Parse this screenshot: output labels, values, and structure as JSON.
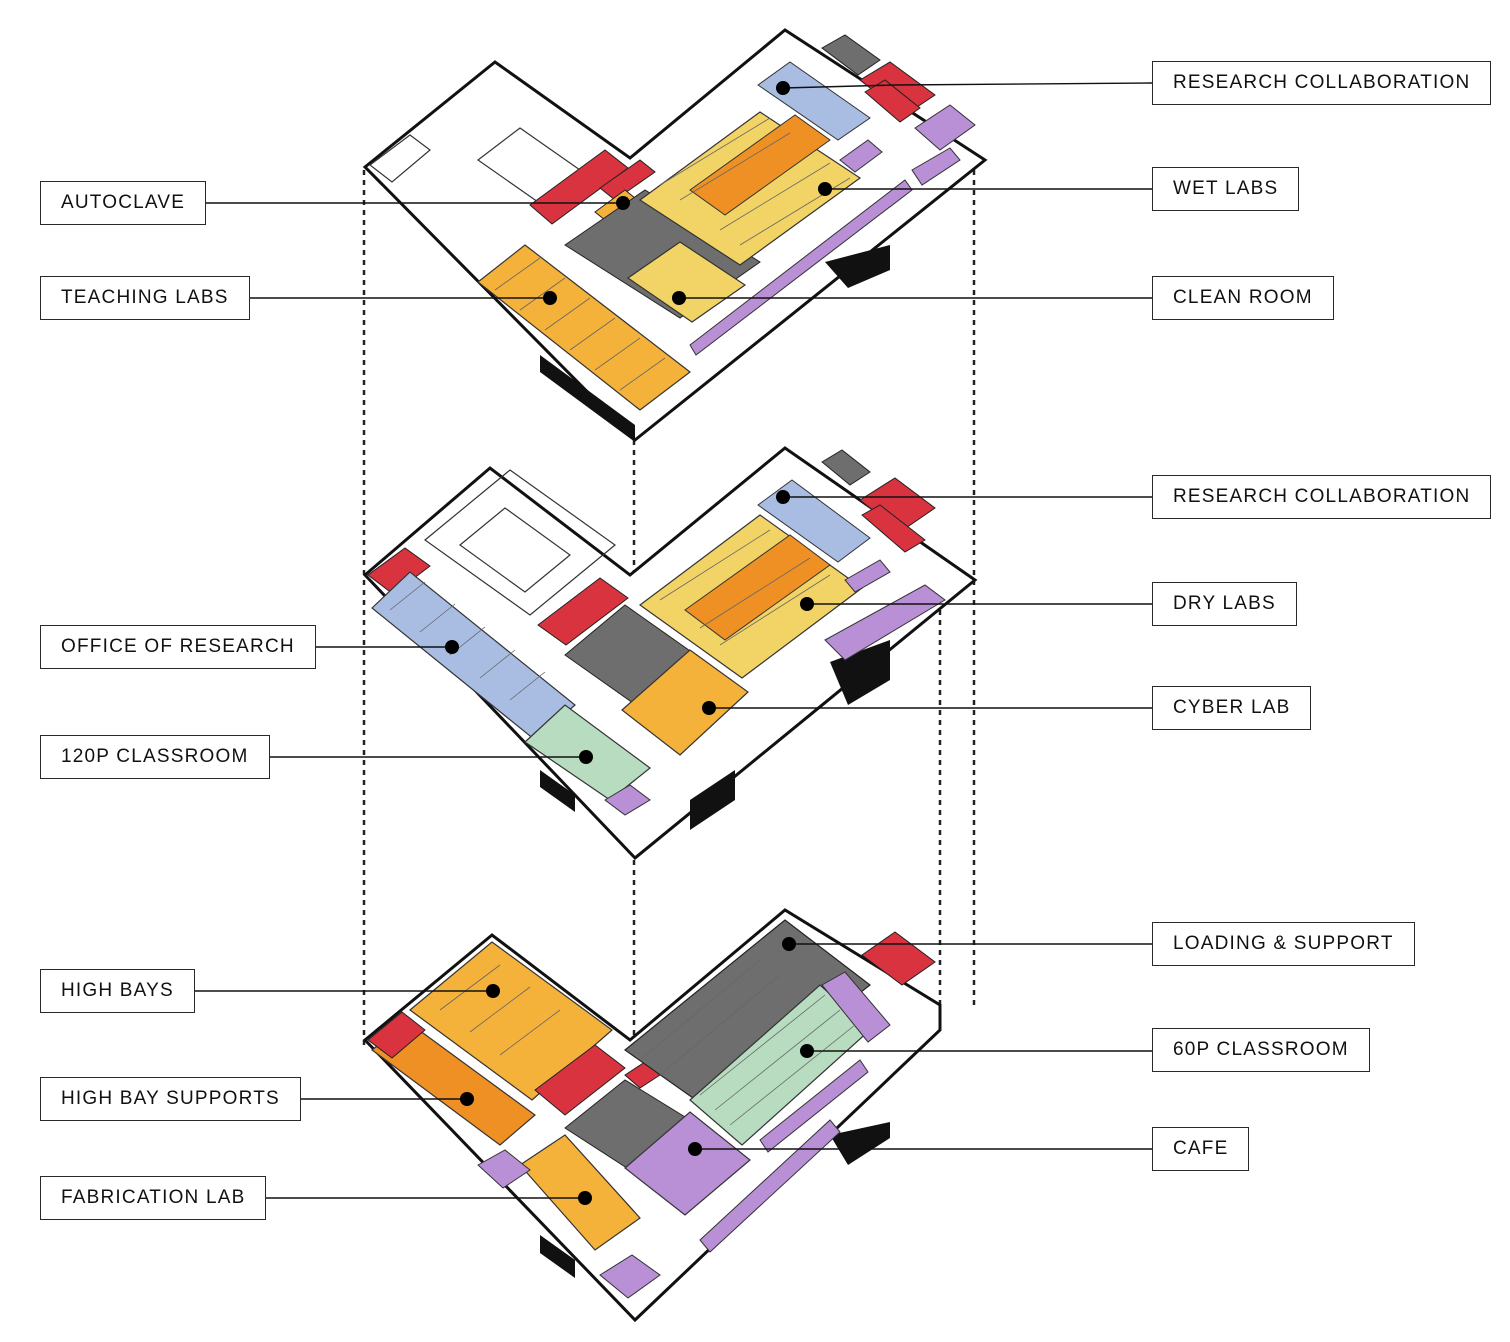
{
  "diagram": {
    "type": "exploded isometric floor plan stack",
    "floors": [
      {
        "name": "upper",
        "labels_left": [
          {
            "key": "autoclave",
            "text": "AUTOCLAVE"
          },
          {
            "key": "teaching_labs",
            "text": "TEACHING LABS"
          }
        ],
        "labels_right": [
          {
            "key": "research_collaboration",
            "text": "RESEARCH COLLABORATION"
          },
          {
            "key": "wet_labs",
            "text": "WET LABS"
          },
          {
            "key": "clean_room",
            "text": "CLEAN ROOM"
          }
        ]
      },
      {
        "name": "middle",
        "labels_left": [
          {
            "key": "office_of_research",
            "text": "OFFICE OF RESEARCH"
          },
          {
            "key": "classroom_120p",
            "text": "120P CLASSROOM"
          }
        ],
        "labels_right": [
          {
            "key": "research_collaboration",
            "text": "RESEARCH COLLABORATION"
          },
          {
            "key": "dry_labs",
            "text": "DRY LABS"
          },
          {
            "key": "cyber_lab",
            "text": "CYBER LAB"
          }
        ]
      },
      {
        "name": "ground",
        "labels_left": [
          {
            "key": "high_bays",
            "text": "HIGH BAYS"
          },
          {
            "key": "high_bay_supports",
            "text": "HIGH BAY SUPPORTS"
          },
          {
            "key": "fabrication_lab",
            "text": "FABRICATION LAB"
          }
        ],
        "labels_right": [
          {
            "key": "loading_support",
            "text": "LOADING & SUPPORT"
          },
          {
            "key": "classroom_60p",
            "text": "60P CLASSROOM"
          },
          {
            "key": "cafe",
            "text": "CAFE"
          }
        ]
      }
    ]
  },
  "colors": {
    "outline": "#111111",
    "yellow": "#f2d466",
    "gold": "#f5b23a",
    "orange": "#ee9024",
    "blue": "#a9bde3",
    "red": "#d9333f",
    "gray": "#6e6e6e",
    "purple": "#b98fd6",
    "green": "#b7dcc0",
    "white": "#ffffff"
  }
}
